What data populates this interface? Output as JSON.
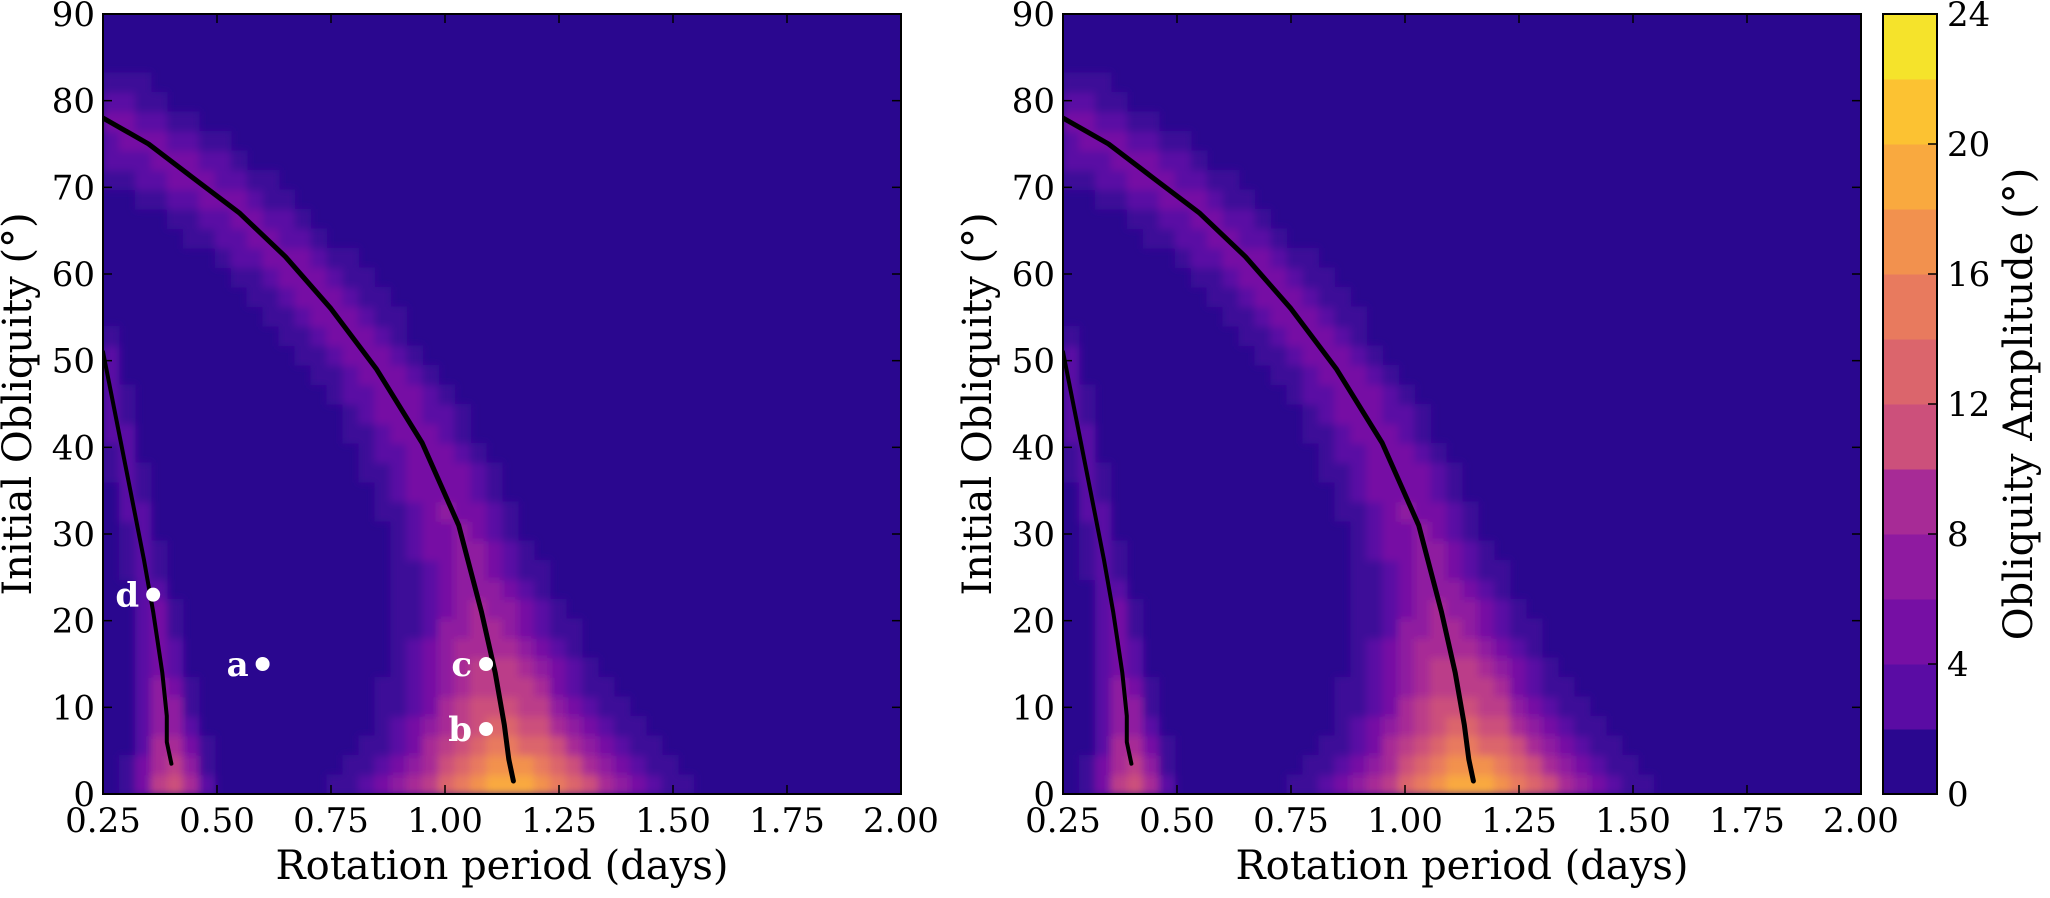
{
  "chart_data": [
    {
      "type": "heatmap",
      "title": "",
      "xlabel": "Rotation period (days)",
      "ylabel": "Initial Obliquity (°)",
      "xlim": [
        0.25,
        2.0
      ],
      "ylim": [
        0,
        90
      ],
      "xticks": [
        "0.25",
        "0.50",
        "0.75",
        "1.00",
        "1.25",
        "1.50",
        "1.75",
        "2.00"
      ],
      "yticks": [
        "0",
        "10",
        "20",
        "30",
        "40",
        "50",
        "60",
        "70",
        "80",
        "90"
      ],
      "grid": false,
      "resonance_curves": [
        {
          "points": [
            [
              0.25,
              78
            ],
            [
              0.35,
              75
            ],
            [
              0.45,
              71
            ],
            [
              0.55,
              67
            ],
            [
              0.65,
              62
            ],
            [
              0.75,
              56
            ],
            [
              0.85,
              49
            ],
            [
              0.95,
              40.5
            ],
            [
              1.03,
              31
            ],
            [
              1.08,
              21
            ],
            [
              1.11,
              14
            ],
            [
              1.13,
              8
            ],
            [
              1.14,
              4
            ],
            [
              1.15,
              1.5
            ]
          ]
        },
        {
          "points": [
            [
              0.25,
              51
            ],
            [
              0.28,
              43
            ],
            [
              0.31,
              35
            ],
            [
              0.34,
              27
            ],
            [
              0.36,
              21
            ],
            [
              0.38,
              14
            ],
            [
              0.39,
              9
            ],
            [
              0.39,
              6
            ],
            [
              0.4,
              3.5
            ]
          ]
        }
      ],
      "annotations": [
        {
          "label": "a",
          "x": 0.6,
          "y": 15
        },
        {
          "label": "b",
          "x": 1.09,
          "y": 7.5
        },
        {
          "label": "c",
          "x": 1.09,
          "y": 15
        },
        {
          "label": "d",
          "x": 0.36,
          "y": 23
        }
      ]
    },
    {
      "type": "heatmap",
      "title": "",
      "xlabel": "Rotation period (days)",
      "ylabel": "Initial Obliquity (°)",
      "xlim": [
        0.25,
        2.0
      ],
      "ylim": [
        0,
        90
      ],
      "xticks": [
        "0.25",
        "0.50",
        "0.75",
        "1.00",
        "1.25",
        "1.50",
        "1.75",
        "2.00"
      ],
      "yticks": [
        "0",
        "10",
        "20",
        "30",
        "40",
        "50",
        "60",
        "70",
        "80",
        "90"
      ],
      "grid": false,
      "resonance_curves": [
        {
          "points": [
            [
              0.25,
              78
            ],
            [
              0.35,
              75
            ],
            [
              0.45,
              71
            ],
            [
              0.55,
              67
            ],
            [
              0.65,
              62
            ],
            [
              0.75,
              56
            ],
            [
              0.85,
              49
            ],
            [
              0.95,
              40.5
            ],
            [
              1.03,
              31
            ],
            [
              1.08,
              21
            ],
            [
              1.11,
              14
            ],
            [
              1.13,
              8
            ],
            [
              1.14,
              4
            ],
            [
              1.15,
              1.5
            ]
          ]
        },
        {
          "points": [
            [
              0.25,
              51
            ],
            [
              0.28,
              43
            ],
            [
              0.31,
              35
            ],
            [
              0.34,
              27
            ],
            [
              0.36,
              21
            ],
            [
              0.38,
              14
            ],
            [
              0.39,
              9
            ],
            [
              0.39,
              6
            ],
            [
              0.4,
              3.5
            ]
          ]
        }
      ],
      "annotations": []
    }
  ],
  "colorbar": {
    "label": "Obliquity Amplitude (°)",
    "range": [
      0,
      24
    ],
    "ticks": [
      "0",
      "4",
      "8",
      "12",
      "16",
      "20",
      "24"
    ],
    "levels": [
      "#2a078f",
      "#3c0a98",
      "#5a0ca4",
      "#760fa4",
      "#8f1aa0",
      "#a72b96",
      "#bb3d89",
      "#cc507b",
      "#db656c",
      "#e87a5e",
      "#f2914e",
      "#f9a93f",
      "#fcc232",
      "#f5e32b"
    ]
  },
  "colors": {
    "background_level": "#2a078f",
    "curve": "#000000",
    "annotation": "#ffffff"
  }
}
